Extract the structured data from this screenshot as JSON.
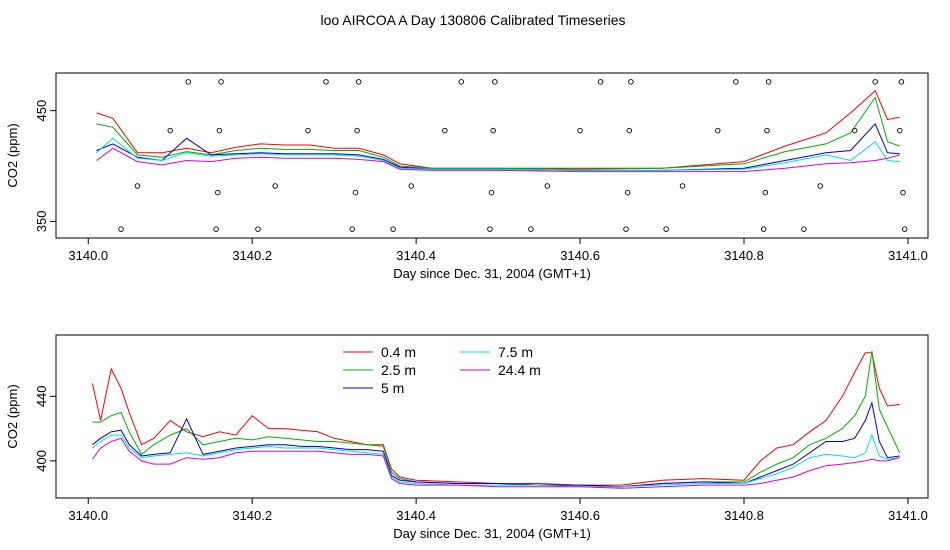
{
  "title": "loo AIRCOA A  Day 130806  Calibrated Timeseries",
  "chart_data": [
    {
      "type": "line",
      "panel": "top",
      "xlabel": "Day since Dec. 31, 2004 (GMT+1)",
      "ylabel": "CO2 (ppm)",
      "xlim": [
        3140.0,
        3141.0
      ],
      "ylim": [
        335,
        484
      ],
      "x_ticks": [
        3140.0,
        3140.2,
        3140.4,
        3140.6,
        3140.8,
        3141.0
      ],
      "x_tick_labels": [
        "3140.0",
        "3140.2",
        "3140.4",
        "3140.6",
        "3140.8",
        "3141.0"
      ],
      "y_ticks": [
        350,
        450
      ],
      "y_tick_labels": [
        "350",
        "450"
      ],
      "grid": false,
      "series": [
        {
          "color": "#ff0000",
          "x": [
            3140.01,
            3140.03,
            3140.06,
            3140.09,
            3140.12,
            3140.15,
            3140.18,
            3140.21,
            3140.24,
            3140.27,
            3140.3,
            3140.33,
            3140.36,
            3140.38,
            3140.42,
            3140.5,
            3140.6,
            3140.7,
            3140.8,
            3140.85,
            3140.9,
            3140.93,
            3140.96,
            3140.975,
            3140.99
          ],
          "y": [
            448,
            443,
            412,
            412,
            416,
            412,
            417,
            420,
            419,
            419,
            416,
            416,
            410,
            402,
            398,
            398,
            398,
            398,
            404,
            418,
            430,
            448,
            468,
            442,
            444
          ]
        },
        {
          "color": "#00b000",
          "x": [
            3140.01,
            3140.03,
            3140.06,
            3140.09,
            3140.12,
            3140.15,
            3140.18,
            3140.21,
            3140.24,
            3140.27,
            3140.3,
            3140.33,
            3140.36,
            3140.38,
            3140.42,
            3140.5,
            3140.6,
            3140.7,
            3140.8,
            3140.85,
            3140.9,
            3140.93,
            3140.96,
            3140.975,
            3140.99
          ],
          "y": [
            438,
            435,
            410,
            408,
            413,
            410,
            414,
            416,
            415,
            415,
            414,
            414,
            408,
            400,
            398,
            398,
            397,
            398,
            402,
            413,
            420,
            430,
            462,
            422,
            418
          ]
        },
        {
          "color": "#0000cc",
          "x": [
            3140.01,
            3140.03,
            3140.06,
            3140.09,
            3140.12,
            3140.15,
            3140.18,
            3140.21,
            3140.24,
            3140.27,
            3140.3,
            3140.33,
            3140.36,
            3140.38,
            3140.42,
            3140.5,
            3140.6,
            3140.7,
            3140.8,
            3140.85,
            3140.9,
            3140.93,
            3140.96,
            3140.975,
            3140.99
          ],
          "y": [
            414,
            420,
            408,
            405,
            425,
            410,
            411,
            412,
            411,
            411,
            411,
            410,
            406,
            399,
            397,
            397,
            396,
            396,
            398,
            405,
            412,
            414,
            438,
            412,
            411
          ]
        },
        {
          "color": "#00e0e0",
          "x": [
            3140.01,
            3140.03,
            3140.06,
            3140.09,
            3140.12,
            3140.15,
            3140.18,
            3140.21,
            3140.24,
            3140.27,
            3140.3,
            3140.33,
            3140.36,
            3140.38,
            3140.42,
            3140.5,
            3140.6,
            3140.7,
            3140.8,
            3140.85,
            3140.9,
            3140.93,
            3140.96,
            3140.975,
            3140.99
          ],
          "y": [
            412,
            425,
            407,
            405,
            412,
            409,
            410,
            411,
            410,
            410,
            410,
            409,
            405,
            398,
            397,
            397,
            396,
            396,
            397,
            403,
            410,
            405,
            422,
            405,
            404
          ]
        },
        {
          "color": "#dd00dd",
          "x": [
            3140.01,
            3140.03,
            3140.06,
            3140.09,
            3140.12,
            3140.15,
            3140.18,
            3140.21,
            3140.24,
            3140.27,
            3140.3,
            3140.33,
            3140.36,
            3140.38,
            3140.42,
            3140.5,
            3140.6,
            3140.7,
            3140.8,
            3140.85,
            3140.9,
            3140.93,
            3140.96,
            3140.975,
            3140.99
          ],
          "y": [
            405,
            416,
            404,
            401,
            405,
            404,
            407,
            408,
            407,
            407,
            407,
            406,
            404,
            397,
            396,
            396,
            395,
            395,
            395,
            398,
            402,
            403,
            405,
            407,
            410
          ]
        }
      ],
      "scatter": {
        "x": [
          3140.04,
          3140.06,
          3140.1,
          3140.122,
          3140.156,
          3140.158,
          3140.16,
          3140.162,
          3140.207,
          3140.228,
          3140.268,
          3140.29,
          3140.322,
          3140.326,
          3140.328,
          3140.33,
          3140.372,
          3140.394,
          3140.435,
          3140.455,
          3140.49,
          3140.492,
          3140.494,
          3140.496,
          3140.54,
          3140.56,
          3140.6,
          3140.625,
          3140.656,
          3140.658,
          3140.66,
          3140.662,
          3140.705,
          3140.725,
          3140.768,
          3140.79,
          3140.824,
          3140.826,
          3140.828,
          3140.83,
          3140.873,
          3140.893,
          3140.935,
          3140.96,
          3140.99,
          3140.992,
          3140.994,
          3140.996
        ],
        "y": [
          343,
          382,
          432,
          476,
          343,
          376,
          432,
          476,
          343,
          382,
          432,
          476,
          343,
          376,
          432,
          476,
          343,
          382,
          432,
          476,
          343,
          376,
          432,
          476,
          343,
          382,
          432,
          476,
          343,
          376,
          432,
          476,
          343,
          382,
          432,
          476,
          343,
          376,
          432,
          476,
          343,
          382,
          432,
          476,
          432,
          476,
          376,
          343
        ]
      }
    },
    {
      "type": "line",
      "panel": "bottom",
      "xlabel": "Day since Dec. 31, 2004 (GMT+1)",
      "ylabel": "CO2 (ppm)",
      "xlim": [
        3140.0,
        3141.0
      ],
      "ylim": [
        377,
        478
      ],
      "x_ticks": [
        3140.0,
        3140.2,
        3140.4,
        3140.6,
        3140.8,
        3141.0
      ],
      "x_tick_labels": [
        "3140.0",
        "3140.2",
        "3140.4",
        "3140.6",
        "3140.8",
        "3141.0"
      ],
      "y_ticks": [
        400,
        440
      ],
      "y_tick_labels": [
        "400",
        "440"
      ],
      "grid": false,
      "legend": "top-left",
      "series": [
        {
          "name": "0.4 m",
          "color": "#ff0000",
          "x": [
            3140.005,
            3140.015,
            3140.028,
            3140.04,
            3140.05,
            3140.065,
            3140.08,
            3140.1,
            3140.12,
            3140.14,
            3140.16,
            3140.18,
            3140.2,
            3140.22,
            3140.24,
            3140.26,
            3140.28,
            3140.3,
            3140.32,
            3140.34,
            3140.36,
            3140.37,
            3140.38,
            3140.4,
            3140.45,
            3140.5,
            3140.55,
            3140.6,
            3140.65,
            3140.7,
            3140.75,
            3140.8,
            3140.82,
            3140.84,
            3140.86,
            3140.88,
            3140.9,
            3140.92,
            3140.935,
            3140.948,
            3140.956,
            3140.965,
            3140.975,
            3140.99
          ],
          "y": [
            448,
            425,
            457,
            445,
            430,
            410,
            414,
            425,
            418,
            415,
            418,
            416,
            428,
            420,
            420,
            419,
            418,
            414,
            412,
            410,
            410,
            395,
            390,
            388,
            387,
            386,
            386,
            385,
            385,
            388,
            389,
            388,
            400,
            408,
            410,
            418,
            425,
            440,
            455,
            467,
            467,
            445,
            434,
            435
          ]
        },
        {
          "name": "2.5 m",
          "color": "#00b000",
          "x": [
            3140.005,
            3140.015,
            3140.028,
            3140.04,
            3140.05,
            3140.065,
            3140.08,
            3140.1,
            3140.12,
            3140.14,
            3140.16,
            3140.18,
            3140.2,
            3140.22,
            3140.24,
            3140.26,
            3140.28,
            3140.3,
            3140.32,
            3140.34,
            3140.36,
            3140.37,
            3140.38,
            3140.4,
            3140.45,
            3140.5,
            3140.55,
            3140.6,
            3140.65,
            3140.7,
            3140.75,
            3140.8,
            3140.82,
            3140.84,
            3140.86,
            3140.88,
            3140.9,
            3140.92,
            3140.935,
            3140.948,
            3140.956,
            3140.965,
            3140.975,
            3140.99
          ],
          "y": [
            424,
            424,
            428,
            430,
            418,
            404,
            410,
            416,
            420,
            410,
            412,
            414,
            413,
            415,
            414,
            413,
            412,
            412,
            411,
            410,
            409,
            393,
            389,
            387,
            386,
            386,
            385,
            385,
            384,
            386,
            387,
            387,
            393,
            398,
            402,
            410,
            414,
            420,
            428,
            440,
            468,
            432,
            421,
            405
          ]
        },
        {
          "name": "5 m",
          "color": "#0000cc",
          "x": [
            3140.005,
            3140.015,
            3140.028,
            3140.04,
            3140.05,
            3140.065,
            3140.08,
            3140.1,
            3140.12,
            3140.14,
            3140.16,
            3140.18,
            3140.2,
            3140.22,
            3140.24,
            3140.26,
            3140.28,
            3140.3,
            3140.32,
            3140.34,
            3140.36,
            3140.37,
            3140.38,
            3140.4,
            3140.45,
            3140.5,
            3140.55,
            3140.6,
            3140.65,
            3140.7,
            3140.75,
            3140.8,
            3140.82,
            3140.84,
            3140.86,
            3140.88,
            3140.9,
            3140.92,
            3140.935,
            3140.948,
            3140.956,
            3140.965,
            3140.975,
            3140.99
          ],
          "y": [
            410,
            414,
            418,
            419,
            410,
            403,
            404,
            405,
            426,
            404,
            406,
            408,
            409,
            410,
            410,
            409,
            409,
            408,
            407,
            407,
            406,
            391,
            388,
            387,
            386,
            386,
            385,
            385,
            384,
            386,
            387,
            386,
            390,
            394,
            398,
            405,
            412,
            412,
            414,
            425,
            436,
            412,
            402,
            403
          ]
        },
        {
          "name": "7.5 m",
          "color": "#00e0e0",
          "x": [
            3140.005,
            3140.015,
            3140.028,
            3140.04,
            3140.05,
            3140.065,
            3140.08,
            3140.1,
            3140.12,
            3140.14,
            3140.16,
            3140.18,
            3140.2,
            3140.22,
            3140.24,
            3140.26,
            3140.28,
            3140.3,
            3140.32,
            3140.34,
            3140.36,
            3140.37,
            3140.38,
            3140.4,
            3140.45,
            3140.5,
            3140.55,
            3140.6,
            3140.65,
            3140.7,
            3140.75,
            3140.8,
            3140.82,
            3140.84,
            3140.86,
            3140.88,
            3140.9,
            3140.92,
            3140.935,
            3140.948,
            3140.956,
            3140.965,
            3140.975,
            3140.99
          ],
          "y": [
            408,
            412,
            416,
            416,
            408,
            402,
            403,
            404,
            405,
            403,
            405,
            407,
            408,
            409,
            408,
            408,
            408,
            407,
            406,
            405,
            404,
            390,
            387,
            386,
            385,
            385,
            385,
            384,
            384,
            385,
            386,
            386,
            389,
            392,
            396,
            402,
            404,
            403,
            402,
            405,
            416,
            403,
            401,
            402
          ]
        },
        {
          "name": "24.4 m",
          "color": "#dd00dd",
          "x": [
            3140.005,
            3140.015,
            3140.028,
            3140.04,
            3140.05,
            3140.065,
            3140.08,
            3140.1,
            3140.12,
            3140.14,
            3140.16,
            3140.18,
            3140.2,
            3140.22,
            3140.24,
            3140.26,
            3140.28,
            3140.3,
            3140.32,
            3140.34,
            3140.36,
            3140.37,
            3140.38,
            3140.4,
            3140.45,
            3140.5,
            3140.55,
            3140.6,
            3140.65,
            3140.7,
            3140.75,
            3140.8,
            3140.82,
            3140.84,
            3140.86,
            3140.88,
            3140.9,
            3140.92,
            3140.935,
            3140.948,
            3140.956,
            3140.965,
            3140.975,
            3140.99
          ],
          "y": [
            401,
            408,
            412,
            414,
            406,
            400,
            398,
            398,
            402,
            401,
            402,
            405,
            406,
            406,
            406,
            406,
            406,
            405,
            404,
            404,
            403,
            389,
            386,
            385,
            385,
            384,
            384,
            384,
            383,
            384,
            385,
            385,
            386,
            388,
            390,
            394,
            397,
            398,
            399,
            400,
            401,
            400,
            400,
            402
          ]
        }
      ]
    }
  ]
}
